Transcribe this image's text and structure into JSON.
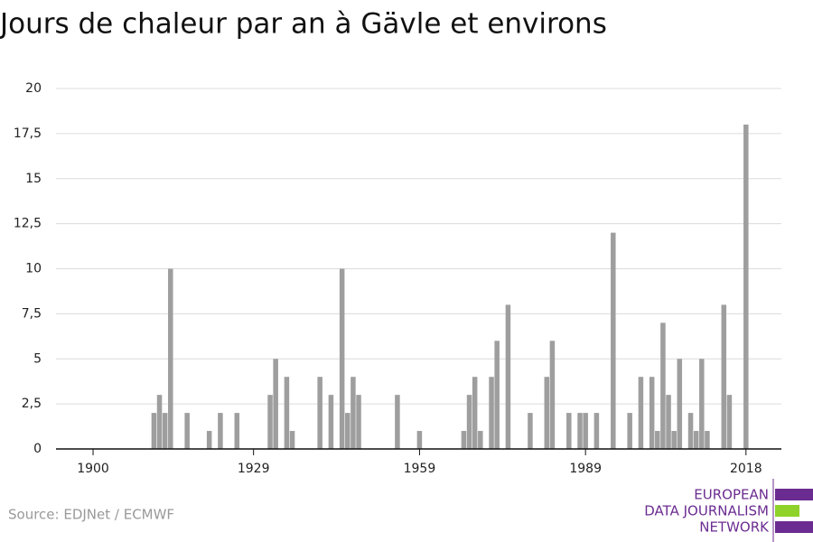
{
  "chart_data": {
    "type": "bar",
    "title": "Jours de chaleur par an à Gävle et environs",
    "source": "Source: EDJNet / ECMWF",
    "logo": [
      "EUROPEAN",
      "DATA JOURNALISM",
      "NETWORK"
    ],
    "color": "#9e9e9e",
    "x": [
      1900,
      1901,
      1902,
      1903,
      1904,
      1905,
      1906,
      1907,
      1908,
      1909,
      1910,
      1911,
      1912,
      1913,
      1914,
      1915,
      1916,
      1917,
      1918,
      1919,
      1920,
      1921,
      1922,
      1923,
      1924,
      1925,
      1926,
      1927,
      1928,
      1929,
      1930,
      1931,
      1932,
      1933,
      1934,
      1935,
      1936,
      1937,
      1938,
      1939,
      1940,
      1941,
      1942,
      1943,
      1944,
      1945,
      1946,
      1947,
      1948,
      1949,
      1950,
      1951,
      1952,
      1953,
      1954,
      1955,
      1956,
      1957,
      1958,
      1959,
      1960,
      1961,
      1962,
      1963,
      1964,
      1965,
      1966,
      1967,
      1968,
      1969,
      1970,
      1971,
      1972,
      1973,
      1974,
      1975,
      1976,
      1977,
      1978,
      1979,
      1980,
      1981,
      1982,
      1983,
      1984,
      1985,
      1986,
      1987,
      1988,
      1989,
      1990,
      1991,
      1992,
      1993,
      1994,
      1995,
      1996,
      1997,
      1998,
      1999,
      2000,
      2001,
      2002,
      2003,
      2004,
      2005,
      2006,
      2007,
      2008,
      2009,
      2010,
      2011,
      2012,
      2013,
      2014,
      2015,
      2016,
      2017,
      2018
    ],
    "values": [
      0,
      0,
      0,
      0,
      0,
      0,
      0,
      0,
      0,
      0,
      0,
      2,
      3,
      2,
      10,
      0,
      0,
      2,
      0,
      0,
      0,
      1,
      0,
      2,
      0,
      0,
      2,
      0,
      0,
      0,
      0,
      0,
      3,
      5,
      0,
      4,
      1,
      0,
      0,
      0,
      0,
      4,
      0,
      3,
      0,
      10,
      2,
      4,
      3,
      0,
      0,
      0,
      0,
      0,
      0,
      3,
      0,
      0,
      0,
      1,
      0,
      0,
      0,
      0,
      0,
      0,
      0,
      1,
      3,
      4,
      1,
      0,
      4,
      6,
      0,
      8,
      0,
      0,
      0,
      2,
      0,
      0,
      4,
      6,
      0,
      0,
      2,
      0,
      2,
      2,
      0,
      2,
      0,
      0,
      12,
      0,
      0,
      2,
      0,
      4,
      0,
      4,
      1,
      7,
      3,
      1,
      5,
      0,
      2,
      1,
      5,
      1,
      0,
      0,
      8,
      3,
      0,
      0,
      18
    ],
    "xlim": [
      1893.3,
      2024.4
    ],
    "xticks": [
      1900,
      1929,
      1959,
      1989,
      2018
    ],
    "ylim": [
      0,
      20
    ],
    "yticks": [
      0,
      {
        "value": 2.5,
        "label": "2,5"
      },
      5,
      {
        "value": 7.5,
        "label": "7,5"
      },
      10,
      {
        "value": 12.5,
        "label": "12,5"
      },
      15,
      {
        "value": 17.5,
        "label": "17,5"
      },
      20
    ],
    "grid": true
  }
}
